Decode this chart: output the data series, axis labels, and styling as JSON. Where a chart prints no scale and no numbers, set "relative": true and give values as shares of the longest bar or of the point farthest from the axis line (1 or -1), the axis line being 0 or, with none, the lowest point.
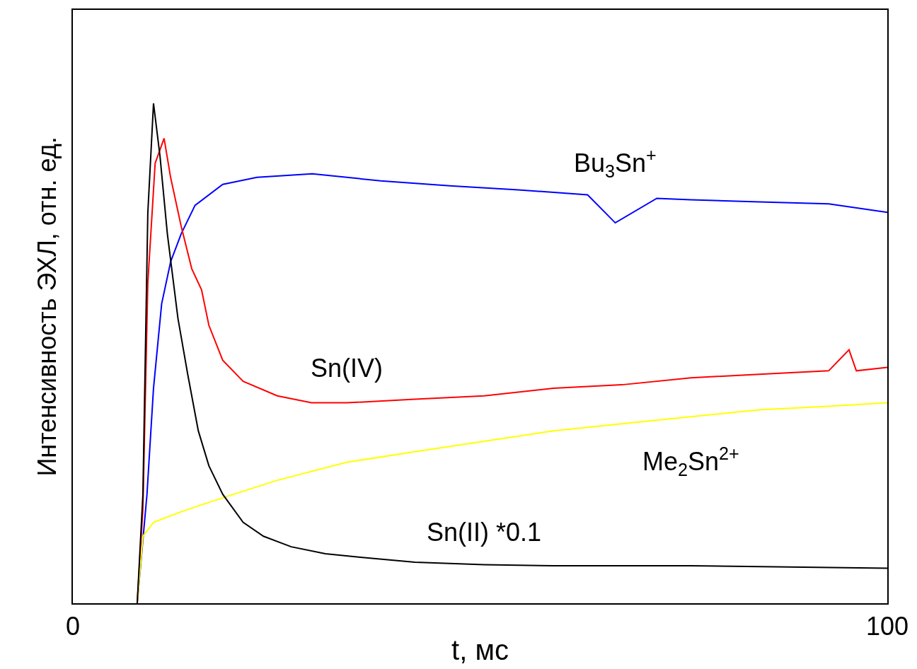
{
  "chart_data": {
    "type": "line",
    "relative": true,
    "xlabel": "t, мс",
    "ylabel": "Интенсивность ЭХЛ, отн. ед.",
    "xlim": [
      0,
      100
    ],
    "xticks": [
      0,
      100
    ],
    "tick_labels": "x",
    "series": [
      {
        "name": "Bu$_{3}$Sn$^{+}$",
        "color": "#0000ff",
        "x": [
          7.9,
          9.1,
          9.9,
          10.9,
          12.0,
          13.3,
          15.0,
          18.4,
          22.6,
          29.4,
          37.8,
          46.3,
          54.7,
          63.2,
          66.6,
          71.7,
          75.9,
          84.3,
          92.8,
          100
        ],
        "values": [
          0,
          0.218,
          0.43,
          0.599,
          0.683,
          0.739,
          0.796,
          0.838,
          0.852,
          0.859,
          0.845,
          0.835,
          0.827,
          0.817,
          0.761,
          0.81,
          0.807,
          0.803,
          0.799,
          0.782
        ]
      },
      {
        "name": "Sn(IV)",
        "color": "#ff0000",
        "x": [
          7.9,
          8.6,
          9.2,
          10.1,
          11.2,
          12.0,
          13.3,
          14.6,
          15.8,
          16.7,
          18.4,
          20.9,
          25.1,
          29.3,
          33.6,
          42.0,
          50.5,
          59.0,
          67.4,
          75.9,
          84.3,
          92.8,
          95.3,
          96.2,
          100
        ],
        "values": [
          0,
          0.19,
          0.64,
          0.88,
          0.93,
          0.852,
          0.754,
          0.669,
          0.627,
          0.556,
          0.486,
          0.444,
          0.415,
          0.401,
          0.401,
          0.408,
          0.415,
          0.43,
          0.437,
          0.451,
          0.458,
          0.465,
          0.507,
          0.465,
          0.472
        ]
      },
      {
        "name": "Me$_{2}$Sn$^{2+}$",
        "color": "#ffff00",
        "x": [
          7.9,
          8.6,
          9.9,
          13.3,
          18.4,
          25.1,
          33.6,
          42.0,
          50.5,
          59.0,
          67.4,
          75.9,
          84.3,
          92.8,
          100
        ],
        "values": [
          0,
          0.134,
          0.162,
          0.183,
          0.211,
          0.246,
          0.282,
          0.303,
          0.324,
          0.345,
          0.359,
          0.373,
          0.387,
          0.394,
          0.401
        ]
      },
      {
        "name": "Sn(II) *0.1",
        "color": "#000000",
        "x": [
          7.9,
          8.6,
          9.2,
          9.9,
          10.7,
          11.6,
          12.9,
          14.1,
          15.4,
          16.7,
          18.4,
          20.9,
          23.4,
          26.8,
          31.0,
          35.3,
          42.0,
          50.5,
          59.0,
          75.9,
          100
        ],
        "values": [
          0,
          0.218,
          0.78,
          1.0,
          0.894,
          0.739,
          0.57,
          0.458,
          0.345,
          0.275,
          0.218,
          0.162,
          0.134,
          0.113,
          0.099,
          0.092,
          0.082,
          0.077,
          0.075,
          0.075,
          0.07
        ]
      }
    ]
  }
}
